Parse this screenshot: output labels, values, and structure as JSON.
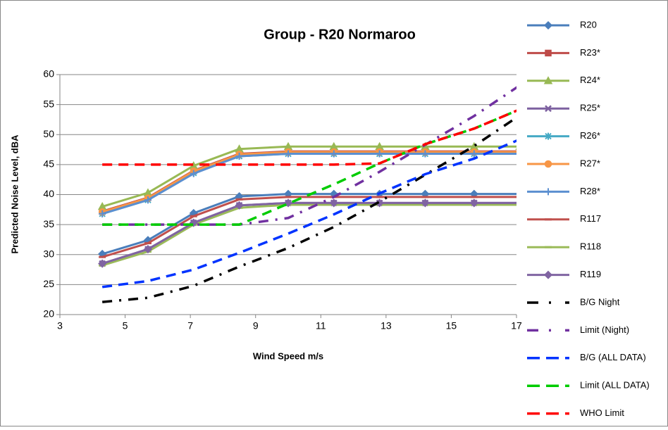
{
  "chart_data": {
    "type": "line",
    "title": "Group - R20 Normaroo",
    "x_label": "Wind Speed m/s",
    "y_label": "Predicted Noise Level, dBA",
    "x": [
      4.3,
      5.7,
      7.1,
      8.5,
      10.0,
      11.4,
      12.8,
      14.2,
      15.7,
      17.1
    ],
    "xlim": [
      3,
      17
    ],
    "xticks": [
      3,
      5,
      7,
      9,
      11,
      13,
      15,
      17
    ],
    "ylim": [
      20,
      60
    ],
    "yticks": [
      20,
      25,
      30,
      35,
      40,
      45,
      50,
      55,
      60
    ],
    "grid": true,
    "legend": "right",
    "series": [
      {
        "name": "R20",
        "color": "#4a7ebb",
        "marker": "diamond",
        "values": [
          30.1,
          32.4,
          36.9,
          39.7,
          40.1,
          40.1,
          40.1,
          40.1,
          40.1,
          40.1
        ]
      },
      {
        "name": "R23*",
        "color": "#be4b48",
        "marker": "square",
        "values": [
          37.2,
          39.5,
          44.0,
          46.8,
          47.2,
          47.2,
          47.2,
          47.2,
          47.2,
          47.2
        ]
      },
      {
        "name": "R24*",
        "color": "#98b954",
        "marker": "triangle",
        "values": [
          38.0,
          40.3,
          44.8,
          47.6,
          48.0,
          48.0,
          48.0,
          48.0,
          48.0,
          48.0
        ]
      },
      {
        "name": "R25*",
        "color": "#7d60a0",
        "marker": "x",
        "values": [
          28.5,
          30.9,
          35.3,
          38.2,
          38.6,
          38.6,
          38.6,
          38.6,
          38.6,
          38.6
        ]
      },
      {
        "name": "R26*",
        "color": "#46aac5",
        "marker": "star",
        "values": [
          36.8,
          39.1,
          43.6,
          46.4,
          46.8,
          46.8,
          46.8,
          46.8,
          46.8,
          46.8
        ]
      },
      {
        "name": "R27*",
        "color": "#f79646",
        "marker": "circle",
        "values": [
          37.1,
          39.4,
          43.9,
          46.7,
          47.1,
          47.1,
          47.1,
          47.1,
          47.1,
          47.1
        ]
      },
      {
        "name": "R28*",
        "color": "#5b8fd0",
        "marker": "plus",
        "values": [
          36.8,
          39.1,
          43.5,
          46.4,
          46.8,
          46.8,
          46.8,
          46.8,
          46.8,
          46.8
        ]
      },
      {
        "name": "R117",
        "color": "#c0504d",
        "marker": "dash",
        "values": [
          29.6,
          31.9,
          36.4,
          39.2,
          39.6,
          39.6,
          39.6,
          39.6,
          39.6,
          39.6
        ]
      },
      {
        "name": "R118",
        "color": "#9bbb59",
        "marker": "dash",
        "values": [
          28.2,
          30.5,
          35.0,
          37.8,
          38.3,
          38.3,
          38.3,
          38.3,
          38.3,
          38.3
        ]
      },
      {
        "name": "R119",
        "color": "#8064a2",
        "marker": "diamond",
        "values": [
          28.5,
          30.9,
          35.3,
          38.2,
          38.6,
          38.6,
          38.6,
          38.6,
          38.6,
          38.6
        ]
      },
      {
        "name": "B/G Night",
        "color": "#000000",
        "dash": "dashdot",
        "values": [
          22.1,
          22.8,
          24.8,
          28.0,
          31.1,
          34.6,
          38.8,
          43.3,
          48.1,
          53.2
        ]
      },
      {
        "name": "Limit (Night)",
        "color": "#7030a0",
        "dash": "dashdot",
        "values": [
          35.0,
          35.0,
          35.0,
          35.0,
          36.1,
          39.6,
          43.8,
          48.3,
          53.1,
          58.2
        ]
      },
      {
        "name": "B/G (ALL DATA)",
        "color": "#0033ff",
        "dash": "dash",
        "values": [
          24.6,
          25.6,
          27.5,
          30.3,
          33.5,
          36.7,
          40.2,
          43.4,
          46.0,
          49.2
        ]
      },
      {
        "name": "Limit (ALL DATA)",
        "color": "#00cc00",
        "dash": "dash",
        "values": [
          35.0,
          35.0,
          35.0,
          35.0,
          38.5,
          41.7,
          45.2,
          48.4,
          51.0,
          54.2
        ]
      },
      {
        "name": "WHO Limit",
        "color": "#ff0000",
        "dash": "dash",
        "values": [
          45.0,
          45.0,
          45.0,
          45.0,
          45.0,
          45.0,
          45.2,
          48.4,
          51.0,
          54.2
        ]
      }
    ]
  }
}
